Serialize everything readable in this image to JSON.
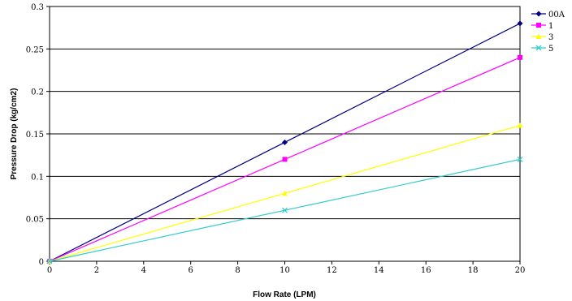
{
  "chart_data": {
    "type": "line",
    "xlabel": "Flow Rate (LPM)",
    "ylabel": "Pressure Drop (kg/cm2)",
    "xlim": [
      0,
      20
    ],
    "ylim": [
      0,
      0.3
    ],
    "x_ticks": [
      "0",
      "2",
      "4",
      "6",
      "8",
      "10",
      "12",
      "14",
      "16",
      "18",
      "20"
    ],
    "y_ticks": [
      "0",
      "0.05",
      "0.1",
      "0.15",
      "0.2",
      "0.25",
      "0.3"
    ],
    "grid": "horizontal",
    "legend_position": "top-right",
    "x": [
      0,
      10,
      20
    ],
    "series": [
      {
        "name": "00A",
        "values": [
          0,
          0.14,
          0.28
        ],
        "color": "#000080",
        "marker": "diamond"
      },
      {
        "name": "1",
        "values": [
          0,
          0.12,
          0.24
        ],
        "color": "#ff00ff",
        "marker": "square"
      },
      {
        "name": "3",
        "values": [
          0,
          0.08,
          0.16
        ],
        "color": "#ffff00",
        "marker": "triangle"
      },
      {
        "name": "5",
        "values": [
          0,
          0.06,
          0.12
        ],
        "color": "#33cccc",
        "marker": "x"
      }
    ]
  }
}
